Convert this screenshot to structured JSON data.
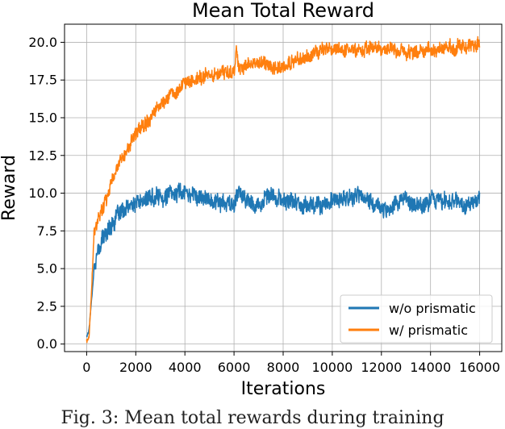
{
  "chart_data": {
    "type": "line",
    "title": "Mean Total Reward",
    "xlabel": "Iterations",
    "ylabel": "Reward",
    "xlim": [
      -900,
      16900
    ],
    "ylim": [
      -0.5,
      21.2
    ],
    "x_ticks": [
      0,
      2000,
      4000,
      6000,
      8000,
      10000,
      12000,
      14000,
      16000
    ],
    "x_tick_labels": [
      "0",
      "2000",
      "4000",
      "6000",
      "8000",
      "10000",
      "12000",
      "14000",
      "16000"
    ],
    "y_ticks": [
      0.0,
      2.5,
      5.0,
      7.5,
      10.0,
      12.5,
      15.0,
      17.5,
      20.0
    ],
    "y_tick_labels": [
      "0.0",
      "2.5",
      "5.0",
      "7.5",
      "10.0",
      "12.5",
      "15.0",
      "17.5",
      "20.0"
    ],
    "grid": true,
    "legend_position": "bottom-right",
    "series": [
      {
        "name": "w/o prismatic",
        "color": "#1f77b4",
        "x": [
          0,
          100,
          200,
          300,
          400,
          600,
          800,
          1000,
          1500,
          2000,
          2500,
          3000,
          3500,
          4000,
          4500,
          5000,
          5500,
          6000,
          6100,
          6500,
          7000,
          7500,
          8000,
          8500,
          9000,
          9500,
          10000,
          10500,
          11000,
          11500,
          12000,
          12500,
          13000,
          13500,
          14000,
          14500,
          15000,
          15500,
          16000
        ],
        "values": [
          0.5,
          1.0,
          3.0,
          5.0,
          5.8,
          6.8,
          7.4,
          8.0,
          8.8,
          9.3,
          9.6,
          9.8,
          9.9,
          10.2,
          9.8,
          9.6,
          9.4,
          9.0,
          10.2,
          9.4,
          9.3,
          9.8,
          9.5,
          9.4,
          9.2,
          9.3,
          9.4,
          9.6,
          9.8,
          9.5,
          8.9,
          9.3,
          9.6,
          9.1,
          9.7,
          9.5,
          9.6,
          9.2,
          9.6
        ]
      },
      {
        "name": "w/ prismatic",
        "color": "#ff7f0e",
        "x": [
          0,
          100,
          200,
          300,
          400,
          600,
          800,
          1000,
          1500,
          2000,
          2500,
          3000,
          3500,
          4000,
          4500,
          5000,
          5500,
          6000,
          6100,
          6200,
          6500,
          7000,
          7500,
          8000,
          8500,
          9000,
          9500,
          10000,
          10500,
          11000,
          11500,
          12000,
          12500,
          13000,
          13500,
          14000,
          14500,
          15000,
          15500,
          16000
        ],
        "values": [
          0.2,
          0.5,
          3.5,
          7.2,
          7.8,
          8.8,
          9.8,
          10.8,
          12.5,
          13.9,
          15.0,
          15.9,
          16.6,
          17.2,
          17.6,
          17.9,
          18.0,
          18.1,
          19.8,
          18.2,
          18.4,
          18.6,
          18.5,
          18.3,
          18.8,
          19.0,
          19.4,
          19.6,
          19.5,
          19.5,
          19.6,
          19.5,
          19.4,
          19.3,
          19.5,
          19.5,
          19.6,
          19.6,
          19.7,
          19.9
        ]
      }
    ]
  },
  "caption": "Fig. 3: Mean total rewards during training"
}
